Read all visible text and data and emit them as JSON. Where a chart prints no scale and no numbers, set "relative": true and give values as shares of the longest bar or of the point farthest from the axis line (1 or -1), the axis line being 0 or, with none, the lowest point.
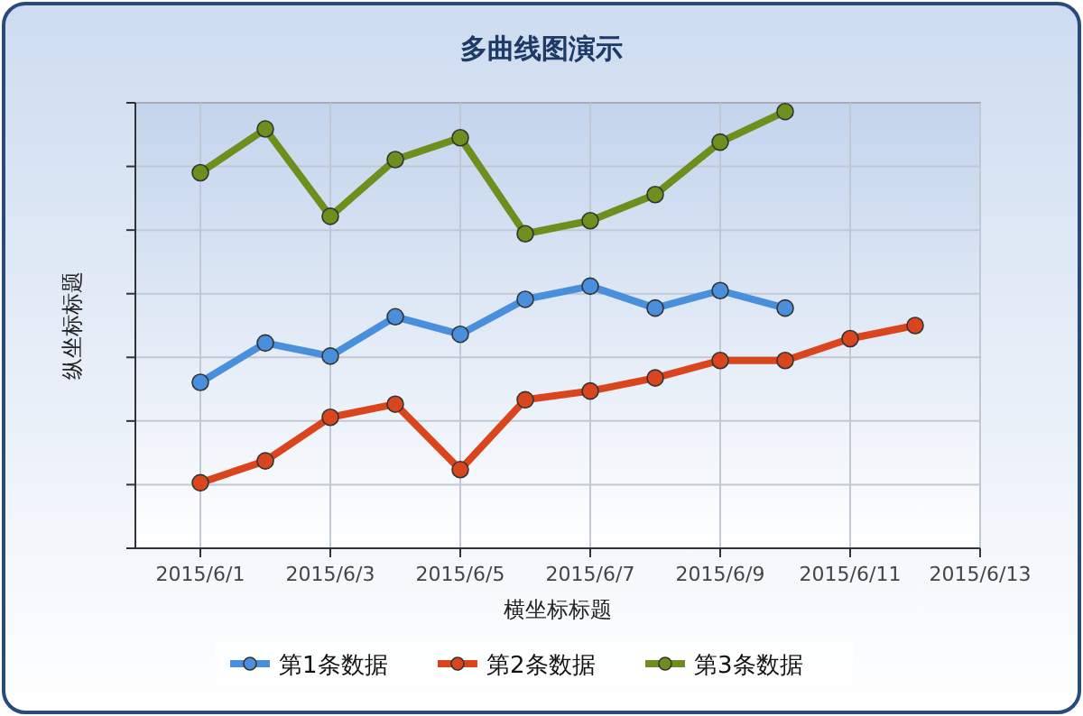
{
  "chart_data": {
    "type": "line",
    "title": "多曲线图演示",
    "xlabel": "横坐标标题",
    "ylabel": "纵坐标标题",
    "relative": true,
    "xlim": [
      "2015-05-31",
      "2015-06-13"
    ],
    "xticks": [
      {
        "value": "2015-06-01",
        "label": "2015/6/1"
      },
      {
        "value": "2015-06-03",
        "label": "2015/6/3"
      },
      {
        "value": "2015-06-05",
        "label": "2015/6/5"
      },
      {
        "value": "2015-06-07",
        "label": "2015/6/7"
      },
      {
        "value": "2015-06-09",
        "label": "2015/6/9"
      },
      {
        "value": "2015-06-11",
        "label": "2015/6/11"
      },
      {
        "value": "2015-06-13",
        "label": "2015/6/13"
      }
    ],
    "grid": true,
    "legend": "bottom",
    "marker": "circle",
    "line_style": "solid",
    "series": [
      {
        "name": "第1条数据",
        "color": "#4a8fdc",
        "x": [
          "2015-06-01",
          "2015-06-02",
          "2015-06-03",
          "2015-06-04",
          "2015-06-05",
          "2015-06-06",
          "2015-06-07",
          "2015-06-08",
          "2015-06-09",
          "2015-06-10"
        ],
        "values": [
          0.38,
          0.47,
          0.44,
          0.53,
          0.49,
          0.57,
          0.6,
          0.55,
          0.59,
          0.55
        ]
      },
      {
        "name": "第2条数据",
        "color": "#d9461e",
        "x": [
          "2015-06-01",
          "2015-06-02",
          "2015-06-03",
          "2015-06-04",
          "2015-06-05",
          "2015-06-06",
          "2015-06-07",
          "2015-06-08",
          "2015-06-09",
          "2015-06-10",
          "2015-06-11",
          "2015-06-12"
        ],
        "values": [
          0.15,
          0.2,
          0.3,
          0.33,
          0.18,
          0.34,
          0.36,
          0.39,
          0.43,
          0.43,
          0.48,
          0.51
        ]
      },
      {
        "name": "第3条数据",
        "color": "#6e8e1e",
        "x": [
          "2015-06-01",
          "2015-06-02",
          "2015-06-03",
          "2015-06-04",
          "2015-06-05",
          "2015-06-06",
          "2015-06-07",
          "2015-06-08",
          "2015-06-09",
          "2015-06-10"
        ],
        "values": [
          0.86,
          0.96,
          0.76,
          0.89,
          0.94,
          0.72,
          0.75,
          0.81,
          0.93,
          1
        ]
      }
    ]
  }
}
